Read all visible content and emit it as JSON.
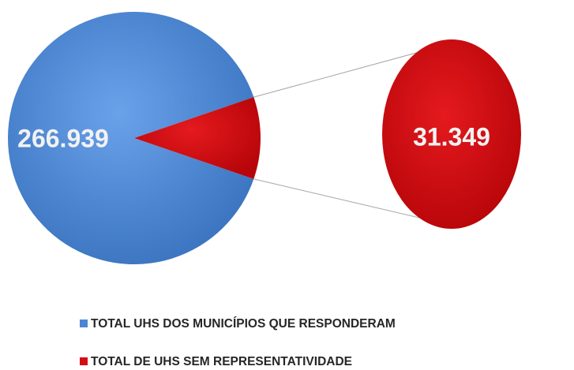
{
  "chart_data": {
    "type": "pie",
    "categories": [
      "TOTAL UHS DOS MUNICÍPIOS QUE RESPONDERAM",
      "TOTAL DE UHS SEM REPRESENTATIVIDADE"
    ],
    "values": [
      266939,
      31349
    ],
    "value_labels": [
      "266.939",
      "31.349"
    ],
    "colors": [
      "#4a86d4",
      "#d40d12"
    ]
  }
}
